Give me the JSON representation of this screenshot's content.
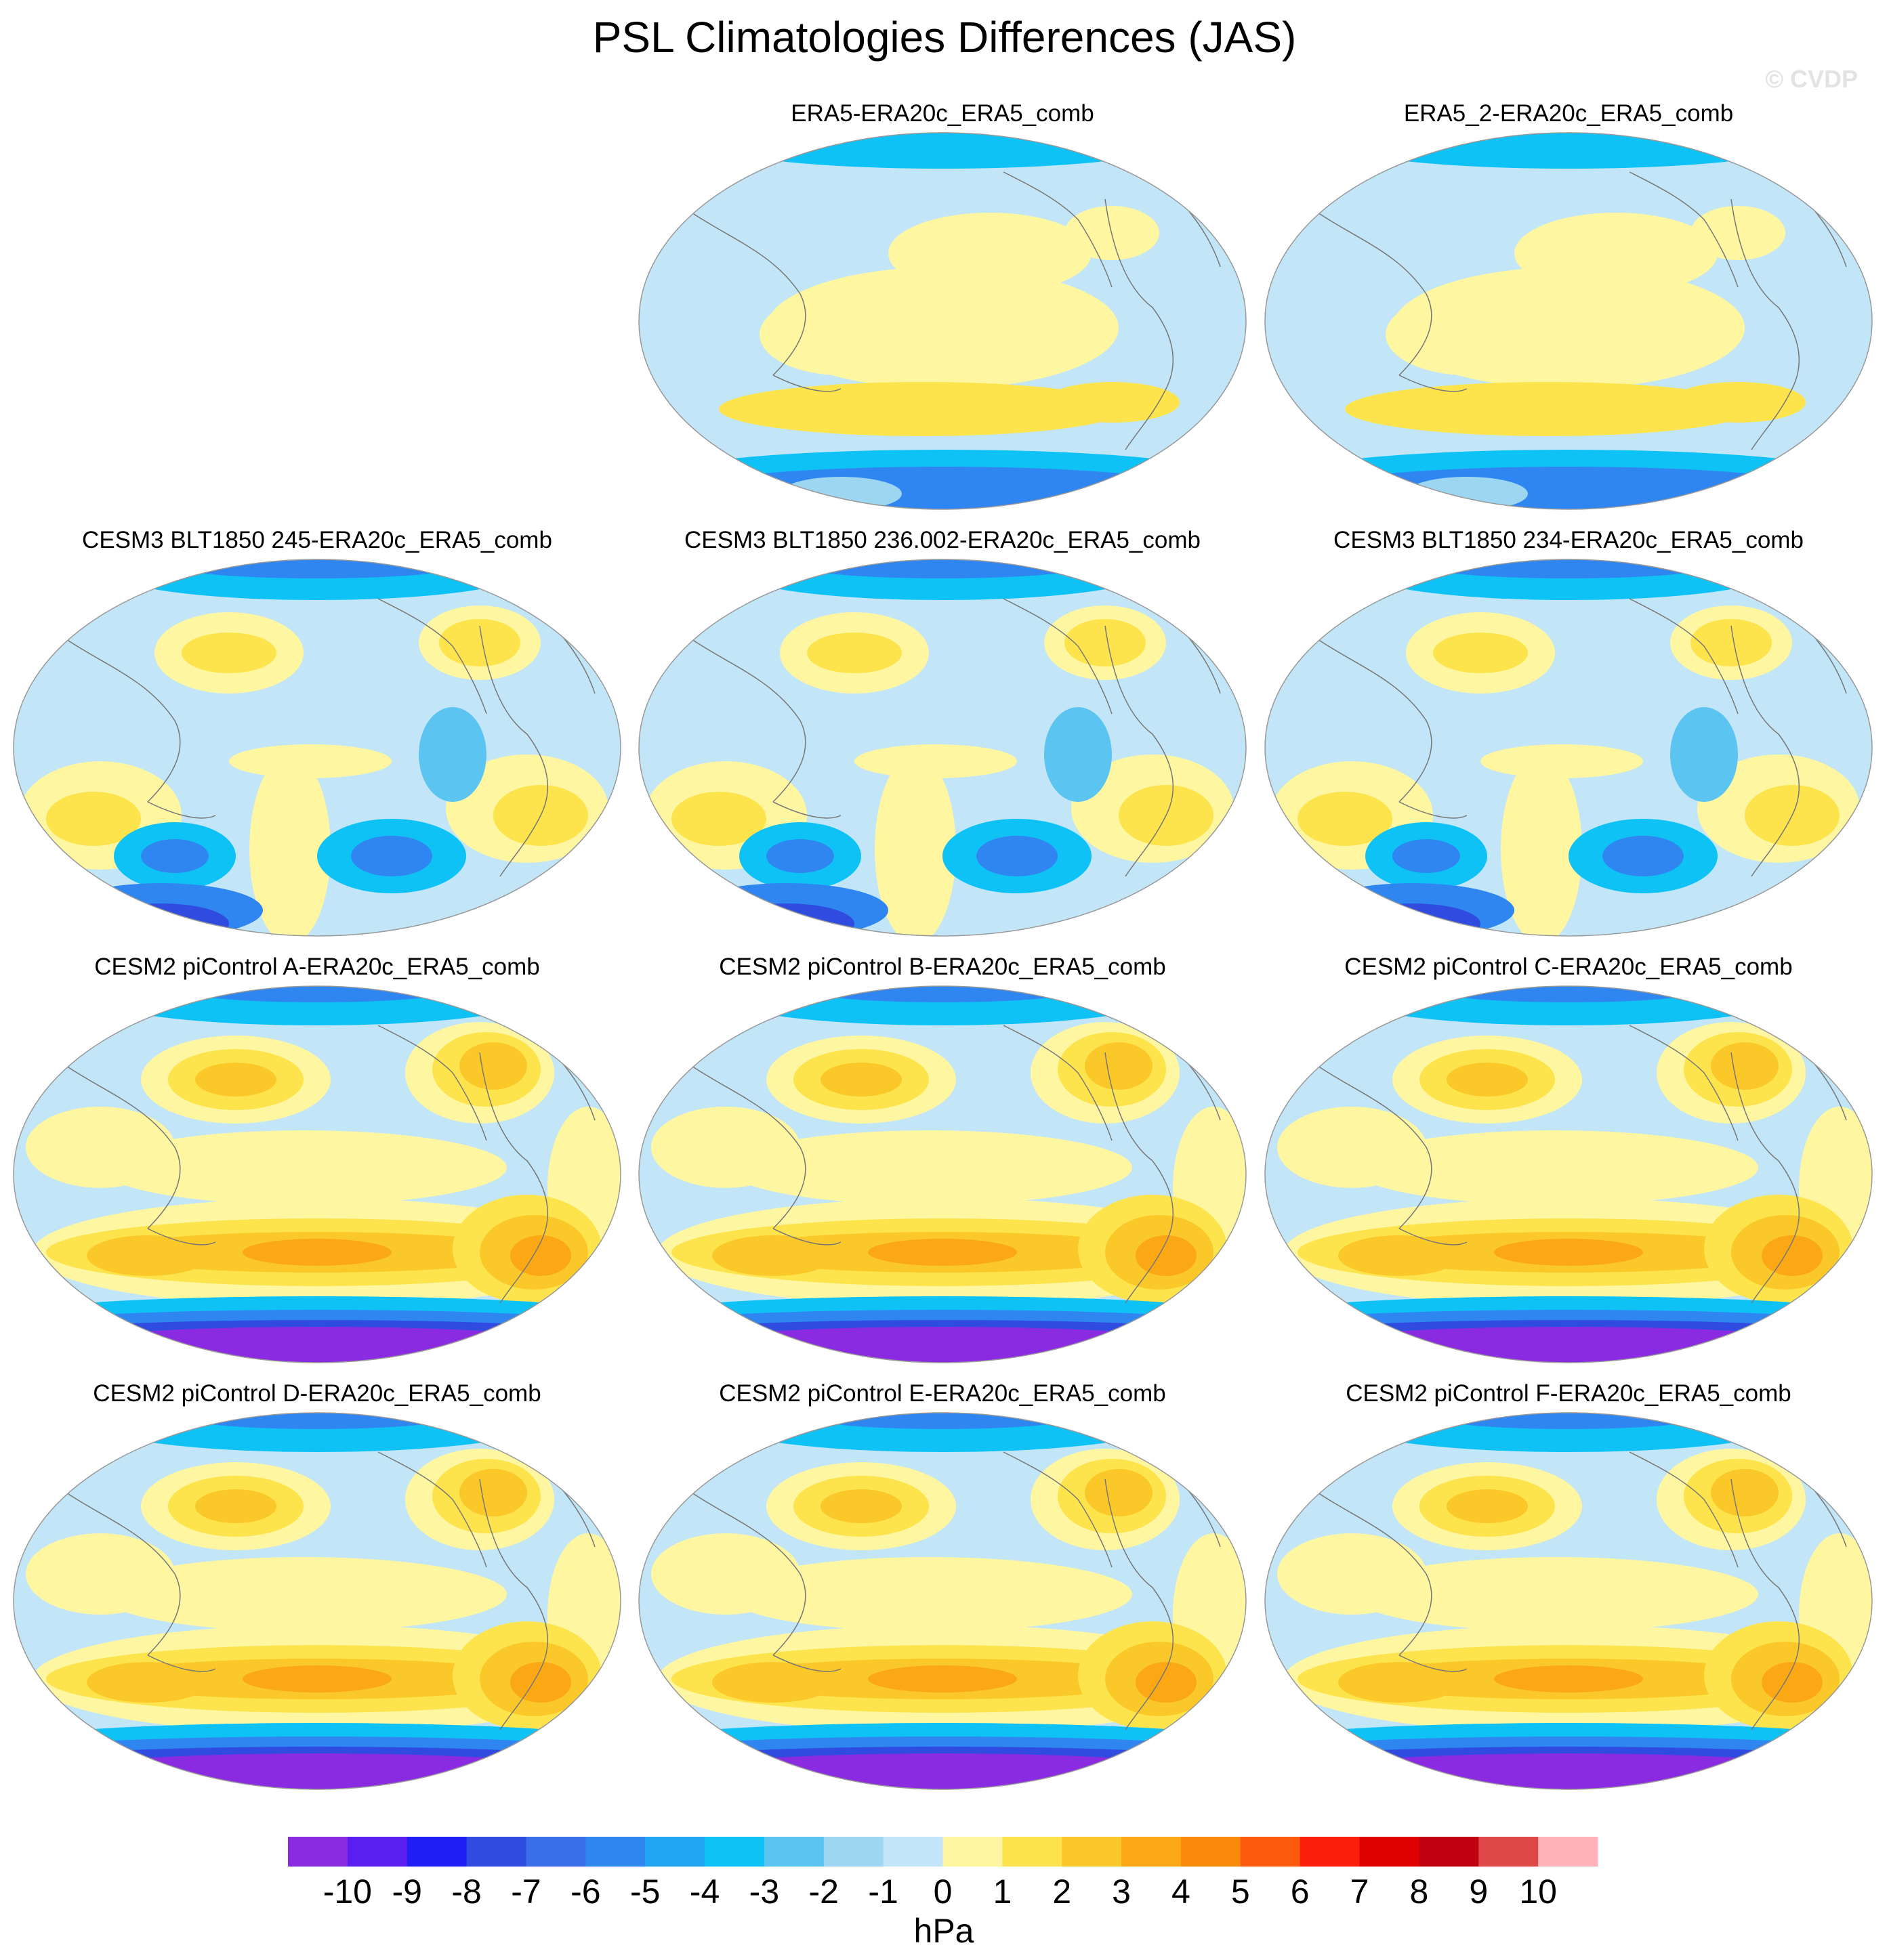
{
  "title": "PSL Climatologies Differences (JAS)",
  "watermark": "© CVDP",
  "panels": [
    {
      "label": "ERA5-ERA20c_ERA5_comb",
      "style": "obs"
    },
    {
      "label": "ERA5_2-ERA20c_ERA5_comb",
      "style": "obs"
    },
    {
      "label": "CESM3 BLT1850 245-ERA20c_ERA5_comb",
      "style": "cesm3"
    },
    {
      "label": "CESM3 BLT1850 236.002-ERA20c_ERA5_comb",
      "style": "cesm3"
    },
    {
      "label": "CESM3 BLT1850 234-ERA20c_ERA5_comb",
      "style": "cesm3"
    },
    {
      "label": "CESM2 piControl A-ERA20c_ERA5_comb",
      "style": "cesm2"
    },
    {
      "label": "CESM2 piControl B-ERA20c_ERA5_comb",
      "style": "cesm2"
    },
    {
      "label": "CESM2 piControl C-ERA20c_ERA5_comb",
      "style": "cesm2"
    },
    {
      "label": "CESM2 piControl D-ERA20c_ERA5_comb",
      "style": "cesm2"
    },
    {
      "label": "CESM2 piControl E-ERA20c_ERA5_comb",
      "style": "cesm2"
    },
    {
      "label": "CESM2 piControl F-ERA20c_ERA5_comb",
      "style": "cesm2"
    }
  ],
  "colorbar": {
    "units": "hPa",
    "labels": [
      "-10",
      "-9",
      "-8",
      "-7",
      "-6",
      "-5",
      "-4",
      "-3",
      "-2",
      "-1",
      "0",
      "1",
      "2",
      "3",
      "4",
      "5",
      "6",
      "7",
      "8",
      "9",
      "10"
    ],
    "colors": [
      "#8a2be2",
      "#5a1ef0",
      "#1f1ff5",
      "#2f4be0",
      "#3a6ee8",
      "#2f86f0",
      "#1ea6f5",
      "#0fc2f5",
      "#5cc4f0",
      "#9dd6f0",
      "#c2e6f7",
      "#fef6a0",
      "#fde44d",
      "#fbc82a",
      "#fba814",
      "#fb8a0a",
      "#fb5a0a",
      "#fb1e0a",
      "#e00000",
      "#c00010",
      "#e04848",
      "#ffb2b8"
    ]
  }
}
